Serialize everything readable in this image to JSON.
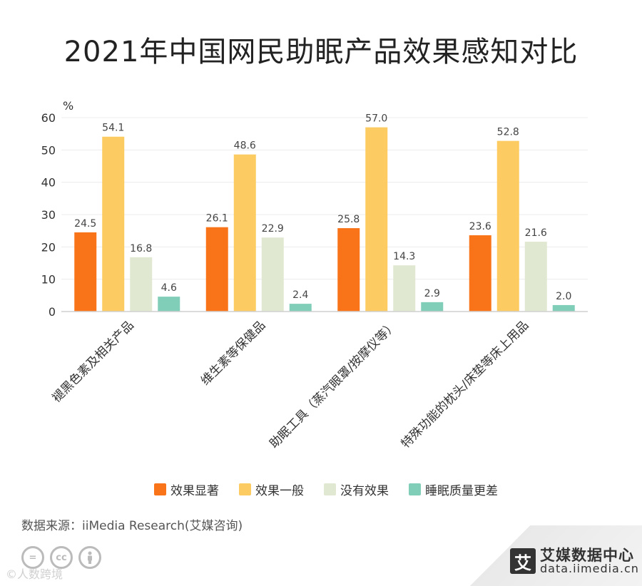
{
  "header": {
    "title": "2021年中国网民助眠产品效果感知对比"
  },
  "chart_data": {
    "type": "bar",
    "title": "2021年中国网民助眠产品效果感知对比",
    "ylabel": "%",
    "ylim": [
      0,
      60
    ],
    "yticks": [
      0,
      10,
      20,
      30,
      40,
      50,
      60
    ],
    "categories": [
      "褪黑色素及相关产品",
      "维生素等保健品",
      "助眠工具（蒸汽眼罩/按摩仪等）",
      "特殊功能的枕头/床垫等床上用品"
    ],
    "series": [
      {
        "name": "效果显著",
        "color": "#f97419",
        "values": [
          24.5,
          26.1,
          25.8,
          23.6
        ]
      },
      {
        "name": "效果一般",
        "color": "#fccc62",
        "values": [
          54.1,
          48.6,
          57.0,
          52.8
        ]
      },
      {
        "name": "没有效果",
        "color": "#e1e8d1",
        "values": [
          16.8,
          22.9,
          14.3,
          21.6
        ]
      },
      {
        "name": "睡眠质量更差",
        "color": "#80cdb8",
        "values": [
          4.6,
          2.4,
          2.9,
          2.0
        ]
      }
    ]
  },
  "footer": {
    "source": "数据来源：iiMedia Research(艾媒咨询)",
    "watermark": "©人数跨境",
    "brand_logo": "艾",
    "brand_name": "艾媒数据中心",
    "brand_url": "data.iimedia.cn"
  }
}
